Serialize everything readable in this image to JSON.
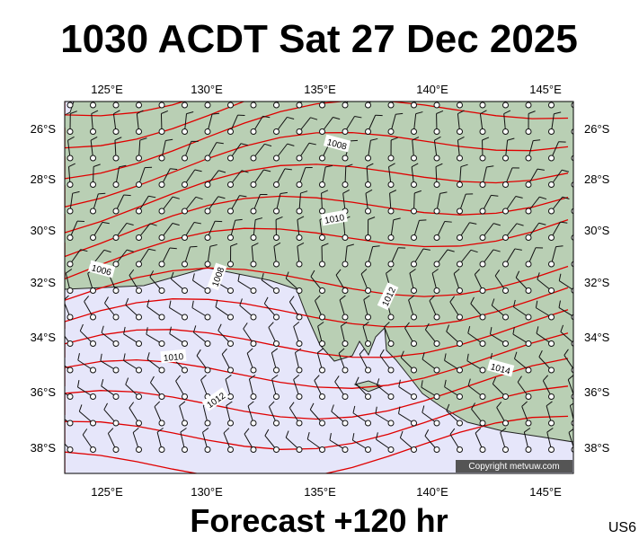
{
  "title": "1030 ACDT Sat 27 Dec 2025",
  "map": {
    "lon_labels": [
      "125°E",
      "130°E",
      "135°E",
      "140°E",
      "145°E"
    ],
    "lat_labels": [
      "26°S",
      "28°S",
      "30°S",
      "32°S",
      "34°S",
      "36°S",
      "38°S"
    ],
    "isobar_labels": [
      "1008",
      "1010",
      "1006",
      "1008",
      "1012",
      "1010",
      "1012",
      "1014"
    ],
    "copyright": "Copyright metvuw.com"
  },
  "footer": "Forecast +120 hr",
  "code": "US6"
}
